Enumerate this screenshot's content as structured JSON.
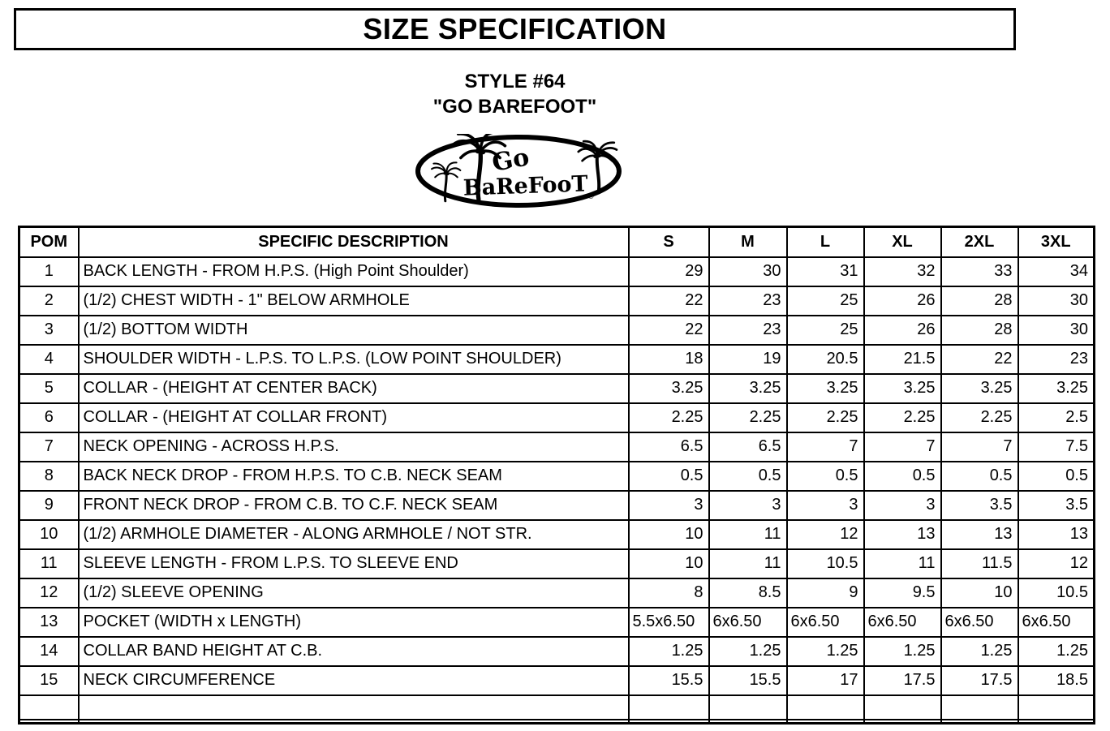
{
  "document": {
    "title": "SIZE SPECIFICATION",
    "style_line1": "STYLE #64",
    "style_line2": "\"GO BAREFOOT\""
  },
  "logo": {
    "word1": "Go",
    "word2": "BaReFooT",
    "reg_mark": "®"
  },
  "colors": {
    "ink": "#000000",
    "paper": "#ffffff"
  },
  "table": {
    "headers": [
      "POM",
      "SPECIFIC DESCRIPTION",
      "S",
      "M",
      "L",
      "XL",
      "2XL",
      "3XL"
    ],
    "rows": [
      {
        "pom": "1",
        "description": "BACK LENGTH - FROM H.P.S. (High Point Shoulder)",
        "values": [
          "29",
          "30",
          "31",
          "32",
          "33",
          "34"
        ],
        "align": "right"
      },
      {
        "pom": "2",
        "description": "(1/2) CHEST WIDTH - 1\" BELOW ARMHOLE",
        "values": [
          "22",
          "23",
          "25",
          "26",
          "28",
          "30"
        ],
        "align": "right"
      },
      {
        "pom": "3",
        "description": "(1/2) BOTTOM WIDTH",
        "values": [
          "22",
          "23",
          "25",
          "26",
          "28",
          "30"
        ],
        "align": "right"
      },
      {
        "pom": "4",
        "description": "SHOULDER WIDTH - L.P.S. TO L.P.S. (LOW POINT SHOULDER)",
        "values": [
          "18",
          "19",
          "20.5",
          "21.5",
          "22",
          "23"
        ],
        "align": "right"
      },
      {
        "pom": "5",
        "description": "COLLAR - (HEIGHT AT CENTER BACK)",
        "values": [
          "3.25",
          "3.25",
          "3.25",
          "3.25",
          "3.25",
          "3.25"
        ],
        "align": "right"
      },
      {
        "pom": "6",
        "description": "COLLAR - (HEIGHT AT COLLAR FRONT)",
        "values": [
          "2.25",
          "2.25",
          "2.25",
          "2.25",
          "2.25",
          "2.5"
        ],
        "align": "right"
      },
      {
        "pom": "7",
        "description": "NECK OPENING - ACROSS H.P.S.",
        "values": [
          "6.5",
          "6.5",
          "7",
          "7",
          "7",
          "7.5"
        ],
        "align": "right"
      },
      {
        "pom": "8",
        "description": "BACK NECK DROP - FROM H.P.S. TO C.B. NECK SEAM",
        "values": [
          "0.5",
          "0.5",
          "0.5",
          "0.5",
          "0.5",
          "0.5"
        ],
        "align": "right"
      },
      {
        "pom": "9",
        "description": "FRONT NECK DROP - FROM C.B. TO C.F. NECK SEAM",
        "values": [
          "3",
          "3",
          "3",
          "3",
          "3.5",
          "3.5"
        ],
        "align": "right"
      },
      {
        "pom": "10",
        "description": "(1/2) ARMHOLE DIAMETER - ALONG ARMHOLE / NOT STR.",
        "values": [
          "10",
          "11",
          "12",
          "13",
          "13",
          "13"
        ],
        "align": "right"
      },
      {
        "pom": "11",
        "description": "SLEEVE LENGTH - FROM L.P.S. TO SLEEVE END",
        "values": [
          "10",
          "11",
          "10.5",
          "11",
          "11.5",
          "12"
        ],
        "align": "right"
      },
      {
        "pom": "12",
        "description": "(1/2) SLEEVE OPENING",
        "values": [
          "8",
          "8.5",
          "9",
          "9.5",
          "10",
          "10.5"
        ],
        "align": "right"
      },
      {
        "pom": "13",
        "description": "POCKET (WIDTH x LENGTH)",
        "values": [
          "5.5x6.50",
          "6x6.50",
          "6x6.50",
          "6x6.50",
          "6x6.50",
          "6x6.50"
        ],
        "align": "left"
      },
      {
        "pom": "14",
        "description": "COLLAR BAND HEIGHT AT C.B.",
        "values": [
          "1.25",
          "1.25",
          "1.25",
          "1.25",
          "1.25",
          "1.25"
        ],
        "align": "right"
      },
      {
        "pom": "15",
        "description": "NECK CIRCUMFERENCE",
        "values": [
          "15.5",
          "15.5",
          "17",
          "17.5",
          "17.5",
          "18.5"
        ],
        "align": "right"
      },
      {
        "pom": "",
        "description": "",
        "values": [
          "",
          "",
          "",
          "",
          "",
          ""
        ],
        "align": "right"
      }
    ]
  }
}
